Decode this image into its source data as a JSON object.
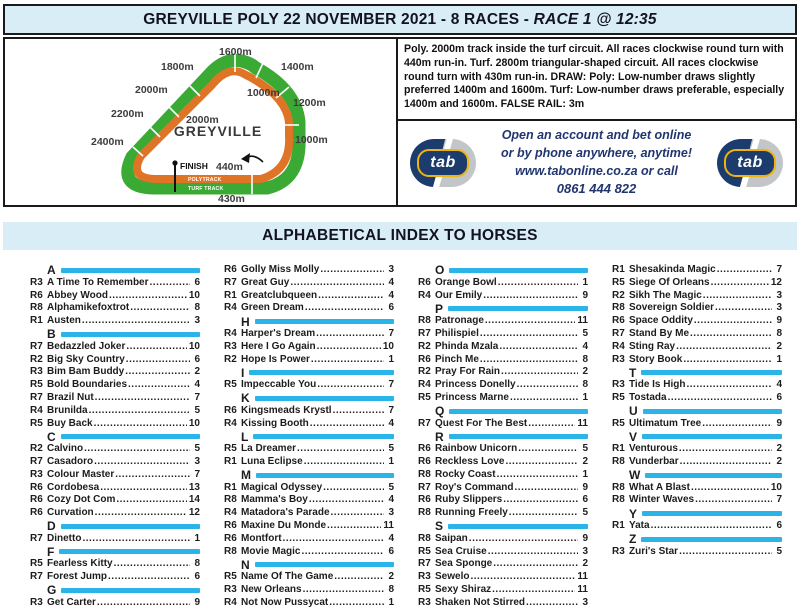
{
  "header": {
    "title_main": "GREYVILLE POLY 22 NOVEMBER 2021 - 8 RACES - ",
    "title_race": "RACE 1 @ 12:35"
  },
  "track": {
    "name": "GREYVILLE",
    "finish_label": "FINISH",
    "polytrack_label": "POLYTRACK",
    "turf_label": "TURF TRACK",
    "markers": {
      "m1600": "1600m",
      "m1800": "1800m",
      "m1400": "1400m",
      "m2000_outer": "2000m",
      "m1000_chute": "1000m",
      "m1200": "1200m",
      "m2200": "2200m",
      "m2000_inner": "2000m",
      "m2400": "2400m",
      "m1000_right": "1000m",
      "m440": "440m",
      "m430": "430m"
    },
    "colors": {
      "turf": "#3aaa35",
      "poly": "#e07426"
    }
  },
  "info_box": {
    "text": "Poly. 2000m track inside the turf circuit. All races clockwise round turn with 440m run-in. Turf. 2800m triangular-shaped circuit. All races clockwise round turn with 430m run-in. DRAW: Poly: Low-number draws slightly preferred 1400m and 1600m. Turf: Low-number draws preferable, especially 1400m and 1600m. FALSE RAIL: 3m"
  },
  "tab_ad": {
    "logo_text": "tab",
    "lines": [
      "Open an account and bet online",
      "or by phone anywhere, anytime!",
      "www.tabonline.co.za or call",
      "0861 444 822"
    ]
  },
  "index": {
    "title": "ALPHABETICAL INDEX TO HORSES",
    "accent_color": "#2ab4e8",
    "columns": [
      [
        {
          "letter": "A"
        },
        {
          "race": "R3",
          "horse": "A Time To Remember",
          "num": "6"
        },
        {
          "race": "R6",
          "horse": "Abbey Wood",
          "num": "10"
        },
        {
          "race": "R8",
          "horse": "Alphamikefoxtrot",
          "num": "8"
        },
        {
          "race": "R1",
          "horse": "Austen",
          "num": "3"
        },
        {
          "letter": "B"
        },
        {
          "race": "R7",
          "horse": "Bedazzled Joker",
          "num": "10"
        },
        {
          "race": "R2",
          "horse": "Big Sky Country",
          "num": "6"
        },
        {
          "race": "R3",
          "horse": "Bim Bam Buddy",
          "num": "2"
        },
        {
          "race": "R5",
          "horse": "Bold Boundaries",
          "num": "4"
        },
        {
          "race": "R7",
          "horse": "Brazil Nut",
          "num": "7"
        },
        {
          "race": "R4",
          "horse": "Brunilda",
          "num": "5"
        },
        {
          "race": "R5",
          "horse": "Buy Back",
          "num": "10"
        },
        {
          "letter": "C"
        },
        {
          "race": "R2",
          "horse": "Calvino",
          "num": "5"
        },
        {
          "race": "R7",
          "horse": "Casadoro",
          "num": "3"
        },
        {
          "race": "R3",
          "horse": "Colour Master",
          "num": "7"
        },
        {
          "race": "R6",
          "horse": "Cordobesa",
          "num": "13"
        },
        {
          "race": "R6",
          "horse": "Cozy Dot Com",
          "num": "14"
        },
        {
          "race": "R6",
          "horse": "Curvation",
          "num": "12"
        },
        {
          "letter": "D"
        },
        {
          "race": "R7",
          "horse": "Dinetto",
          "num": "1"
        },
        {
          "letter": "F"
        },
        {
          "race": "R5",
          "horse": "Fearless Kitty",
          "num": "8"
        },
        {
          "race": "R7",
          "horse": "Forest Jump",
          "num": "6"
        },
        {
          "letter": "G"
        },
        {
          "race": "R3",
          "horse": "Get Carter",
          "num": "9"
        }
      ],
      [
        {
          "race": "R6",
          "horse": "Golly Miss Molly",
          "num": "3"
        },
        {
          "race": "R7",
          "horse": "Great Guy",
          "num": "4"
        },
        {
          "race": "R1",
          "horse": "Greatclubqueen",
          "num": "4"
        },
        {
          "race": "R4",
          "horse": "Green Dream",
          "num": "6"
        },
        {
          "letter": "H"
        },
        {
          "race": "R4",
          "horse": "Harper's Dream",
          "num": "7"
        },
        {
          "race": "R3",
          "horse": "Here I Go Again",
          "num": "10"
        },
        {
          "race": "R2",
          "horse": "Hope Is Power",
          "num": "1"
        },
        {
          "letter": "I"
        },
        {
          "race": "R5",
          "horse": "Impeccable You",
          "num": "7"
        },
        {
          "letter": "K"
        },
        {
          "race": "R6",
          "horse": "Kingsmeads Krystl",
          "num": "7"
        },
        {
          "race": "R4",
          "horse": "Kissing Booth",
          "num": "4"
        },
        {
          "letter": "L"
        },
        {
          "race": "R5",
          "horse": "La Dreamer",
          "num": "5"
        },
        {
          "race": "R1",
          "horse": "Luna Eclipse",
          "num": "1"
        },
        {
          "letter": "M"
        },
        {
          "race": "R1",
          "horse": "Magical Odyssey",
          "num": "5"
        },
        {
          "race": "R8",
          "horse": "Mamma's Boy",
          "num": "4"
        },
        {
          "race": "R4",
          "horse": "Matadora's Parade",
          "num": "3"
        },
        {
          "race": "R6",
          "horse": "Maxine Du Monde",
          "num": "11"
        },
        {
          "race": "R6",
          "horse": "Montfort",
          "num": "4"
        },
        {
          "race": "R8",
          "horse": "Movie Magic",
          "num": "6"
        },
        {
          "letter": "N"
        },
        {
          "race": "R5",
          "horse": "Name Of The Game",
          "num": "2"
        },
        {
          "race": "R3",
          "horse": "New Orleans",
          "num": "8"
        },
        {
          "race": "R4",
          "horse": "Not Now Pussycat",
          "num": "1"
        }
      ],
      [
        {
          "letter": "O"
        },
        {
          "race": "R6",
          "horse": "Orange Bowl",
          "num": "1"
        },
        {
          "race": "R4",
          "horse": "Our Emily",
          "num": "9"
        },
        {
          "letter": "P"
        },
        {
          "race": "R8",
          "horse": "Patronage",
          "num": "11"
        },
        {
          "race": "R7",
          "horse": "Philispiel",
          "num": "5"
        },
        {
          "race": "R2",
          "horse": "Phinda Mzala",
          "num": "4"
        },
        {
          "race": "R6",
          "horse": "Pinch Me",
          "num": "8"
        },
        {
          "race": "R2",
          "horse": "Pray For Rain",
          "num": "2"
        },
        {
          "race": "R4",
          "horse": "Princess Donelly",
          "num": "8"
        },
        {
          "race": "R5",
          "horse": "Princess Marne",
          "num": "1"
        },
        {
          "letter": "Q"
        },
        {
          "race": "R7",
          "horse": "Quest For The Best",
          "num": "11"
        },
        {
          "letter": "R"
        },
        {
          "race": "R6",
          "horse": "Rainbow Unicorn",
          "num": "5"
        },
        {
          "race": "R6",
          "horse": "Reckless Love",
          "num": "2"
        },
        {
          "race": "R8",
          "horse": "Rocky Coast",
          "num": "1"
        },
        {
          "race": "R7",
          "horse": "Roy's Command",
          "num": "9"
        },
        {
          "race": "R6",
          "horse": "Ruby Slippers",
          "num": "6"
        },
        {
          "race": "R8",
          "horse": "Running Freely",
          "num": "5"
        },
        {
          "letter": "S"
        },
        {
          "race": "R8",
          "horse": "Saipan",
          "num": "9"
        },
        {
          "race": "R5",
          "horse": "Sea Cruise",
          "num": "3"
        },
        {
          "race": "R7",
          "horse": "Sea Sponge",
          "num": "2"
        },
        {
          "race": "R3",
          "horse": "Sewelo",
          "num": "11"
        },
        {
          "race": "R5",
          "horse": "Sexy Shiraz",
          "num": "11"
        },
        {
          "race": "R3",
          "horse": "Shaken Not Stirred",
          "num": "3"
        }
      ],
      [
        {
          "race": "R1",
          "horse": "Shesakinda Magic",
          "num": "7"
        },
        {
          "race": "R5",
          "horse": "Siege Of Orleans",
          "num": "12"
        },
        {
          "race": "R2",
          "horse": "Sikh The Magic",
          "num": "3"
        },
        {
          "race": "R8",
          "horse": "Sovereign Soldier",
          "num": "3"
        },
        {
          "race": "R6",
          "horse": "Space Oddity",
          "num": "9"
        },
        {
          "race": "R7",
          "horse": "Stand By Me",
          "num": "8"
        },
        {
          "race": "R4",
          "horse": "Sting Ray",
          "num": "2"
        },
        {
          "race": "R3",
          "horse": "Story Book",
          "num": "1"
        },
        {
          "letter": "T"
        },
        {
          "race": "R3",
          "horse": "Tide Is High",
          "num": "4"
        },
        {
          "race": "R5",
          "horse": "Tostada",
          "num": "6"
        },
        {
          "letter": "U"
        },
        {
          "race": "R5",
          "horse": "Ultimatum Tree",
          "num": "9"
        },
        {
          "letter": "V"
        },
        {
          "race": "R1",
          "horse": "Venturous",
          "num": "2"
        },
        {
          "race": "R8",
          "horse": "Vunderbar",
          "num": "2"
        },
        {
          "letter": "W"
        },
        {
          "race": "R8",
          "horse": "What A Blast",
          "num": "10"
        },
        {
          "race": "R8",
          "horse": "Winter Waves",
          "num": "7"
        },
        {
          "letter": "Y"
        },
        {
          "race": "R1",
          "horse": "Yata",
          "num": "6"
        },
        {
          "letter": "Z"
        },
        {
          "race": "R3",
          "horse": "Zuri's Star",
          "num": "5"
        }
      ]
    ]
  }
}
